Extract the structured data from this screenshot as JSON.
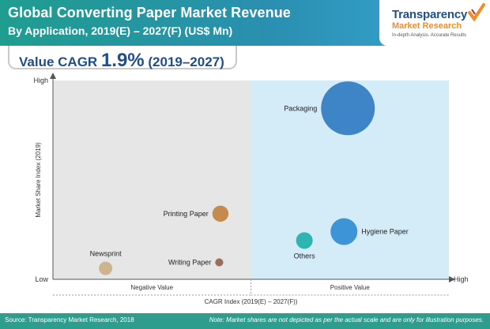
{
  "header": {
    "title": "Global Converting Paper Market Revenue",
    "subtitle": "By Application, 2019(E) – 2027(F) (US$ Mn)"
  },
  "logo": {
    "name_line1": "Transparency",
    "name_line2": "Market Research",
    "tagline": "In-depth Analysis. Accurate Results"
  },
  "cagr": {
    "label": "Value CAGR",
    "value": "1.9%",
    "period": "(2019–2027)"
  },
  "footer": {
    "source": "Source: Transparency Market Research, 2018",
    "note": "Note: Market shares are not depicted as per the actual scale and are only for illustration purposes."
  },
  "colors": {
    "negative_zone": "#e6e6e6",
    "positive_zone": "#d3ecf7",
    "packaging": "#3d85c6",
    "hygiene_paper": "#3d95d8",
    "others": "#2fb5b0",
    "printing_paper": "#c58a4e",
    "writing_paper": "#9a6f5a",
    "newsprint": "#ccb48f"
  },
  "chart_data": {
    "type": "scatter",
    "xlabel": "CAGR Index (2019(E) – 2027(F))",
    "ylabel": "Market Share Index (2019)",
    "x_tick_labels": {
      "low": "Low",
      "high": "High"
    },
    "y_tick_labels": {
      "low": "Low",
      "high": "High"
    },
    "zones": [
      {
        "label": "Negative Value",
        "x_range": [
          0,
          0.5
        ]
      },
      {
        "label": "Positive Value",
        "x_range": [
          0.5,
          1
        ]
      }
    ],
    "xlim": [
      0,
      1
    ],
    "ylim": [
      0,
      1
    ],
    "series": [
      {
        "name": "Packaging",
        "x": 0.745,
        "y": 0.86,
        "size": 1.0,
        "color": "#3d85c6",
        "label_side": "left"
      },
      {
        "name": "Hygiene Paper",
        "x": 0.735,
        "y": 0.24,
        "size": 0.5,
        "color": "#3d95d8",
        "label_side": "right"
      },
      {
        "name": "Others",
        "x": 0.635,
        "y": 0.195,
        "size": 0.31,
        "color": "#2fb5b0",
        "label_side": "below"
      },
      {
        "name": "Printing Paper",
        "x": 0.423,
        "y": 0.33,
        "size": 0.3,
        "color": "#c58a4e",
        "label_side": "left"
      },
      {
        "name": "Writing Paper",
        "x": 0.42,
        "y": 0.085,
        "size": 0.15,
        "color": "#9a6f5a",
        "label_side": "left"
      },
      {
        "name": "Newsprint",
        "x": 0.133,
        "y": 0.055,
        "size": 0.25,
        "color": "#ccb48f",
        "label_side": "above"
      }
    ]
  }
}
